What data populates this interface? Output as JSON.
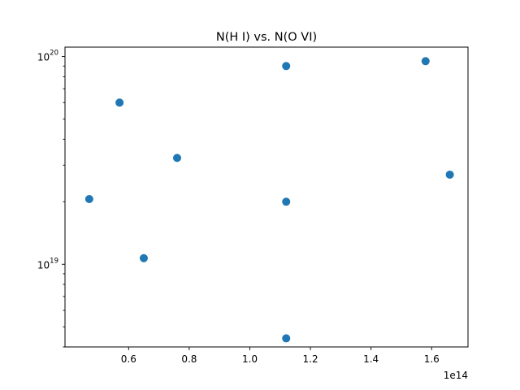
{
  "chart_data": {
    "type": "scatter",
    "title": "N(H I) vs. N(O VI)",
    "xlabel": "",
    "ylabel": "",
    "x_offset_label": "1e14",
    "x_multiplier": 100000000000000.0,
    "xlim": [
      0.39,
      1.72
    ],
    "ylim": [
      4e+18,
      1.11e+20
    ],
    "yscale": "log",
    "x_ticks": [
      {
        "value": 0.6,
        "label": "0.6"
      },
      {
        "value": 0.8,
        "label": "0.8"
      },
      {
        "value": 1.0,
        "label": "1.0"
      },
      {
        "value": 1.2,
        "label": "1.2"
      },
      {
        "value": 1.4,
        "label": "1.4"
      },
      {
        "value": 1.6,
        "label": "1.6"
      }
    ],
    "y_major_ticks": [
      {
        "value": 1e+19,
        "label_base": "10",
        "label_exp": "19"
      },
      {
        "value": 1e+20,
        "label_base": "10",
        "label_exp": "20"
      }
    ],
    "y_minor_ticks": [
      4e+18,
      5e+18,
      6e+18,
      7e+18,
      8e+18,
      9e+18,
      2e+19,
      3e+19,
      4e+19,
      5e+19,
      6e+19,
      7e+19,
      8e+19,
      9e+19
    ],
    "marker_color": "#1f77b4",
    "grid": false,
    "points": [
      {
        "x": 0.47,
        "y": 2.06e+19
      },
      {
        "x": 0.57,
        "y": 6e+19
      },
      {
        "x": 0.65,
        "y": 1.07e+19
      },
      {
        "x": 0.76,
        "y": 3.25e+19
      },
      {
        "x": 1.12,
        "y": 9e+19
      },
      {
        "x": 1.12,
        "y": 2e+19
      },
      {
        "x": 1.12,
        "y": 4.4e+18
      },
      {
        "x": 1.58,
        "y": 9.5e+19
      },
      {
        "x": 1.66,
        "y": 2.7e+19
      }
    ]
  }
}
